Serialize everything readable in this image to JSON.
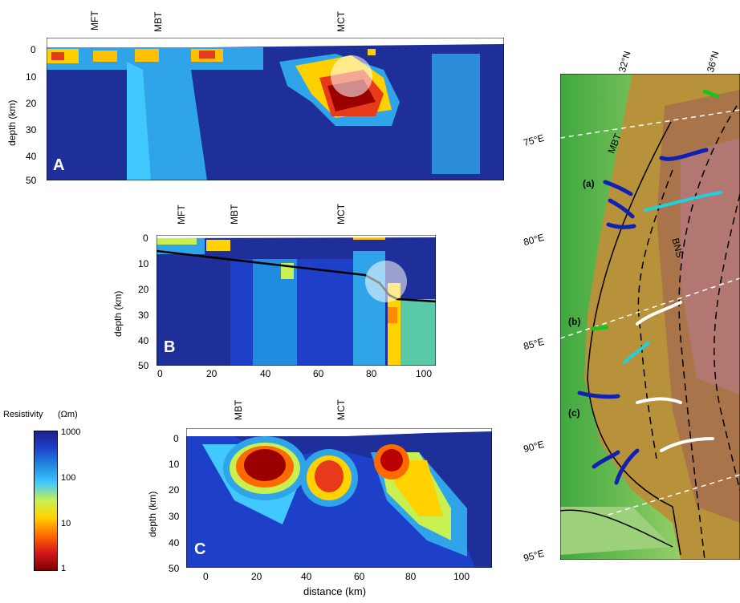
{
  "panels": {
    "A": {
      "letter": "A",
      "ylabel": "depth (km)",
      "yticks": [
        "0",
        "10",
        "20",
        "30",
        "40",
        "50"
      ],
      "faults": [
        "MFT",
        "MBT",
        "MCT"
      ]
    },
    "B": {
      "letter": "B",
      "ylabel": "depth (km)",
      "yticks": [
        "0",
        "10",
        "20",
        "30",
        "40",
        "50"
      ],
      "xticks": [
        "0",
        "20",
        "40",
        "60",
        "80",
        "100"
      ],
      "faults": [
        "MFT",
        "MBT",
        "MCT"
      ]
    },
    "C": {
      "letter": "C",
      "ylabel": "depth (km)",
      "yticks": [
        "0",
        "10",
        "20",
        "30",
        "40",
        "50"
      ],
      "xticks": [
        "0",
        "20",
        "40",
        "60",
        "80",
        "100"
      ],
      "xlabel": "distance (km)",
      "faults": [
        "MBT",
        "MCT"
      ]
    }
  },
  "colorbar": {
    "title": "Resistivity",
    "unit": "(Ωm)",
    "ticks": [
      "1000",
      "100",
      "10",
      "1"
    ],
    "colors": [
      "#7f0000",
      "#d7191c",
      "#ff6a00",
      "#ffd200",
      "#c8f050",
      "#41c8ff",
      "#1f8ce0",
      "#1e40c8",
      "#1f1f8c"
    ]
  },
  "map": {
    "lat_labels": [
      "32°N",
      "36°N"
    ],
    "lon_labels": [
      "75°E",
      "80°E",
      "85°E",
      "90°E",
      "95°E"
    ],
    "fault_labels": [
      "MBT",
      "BNS"
    ],
    "profile_labels": [
      "(a)",
      "(b)",
      "(c)"
    ]
  }
}
